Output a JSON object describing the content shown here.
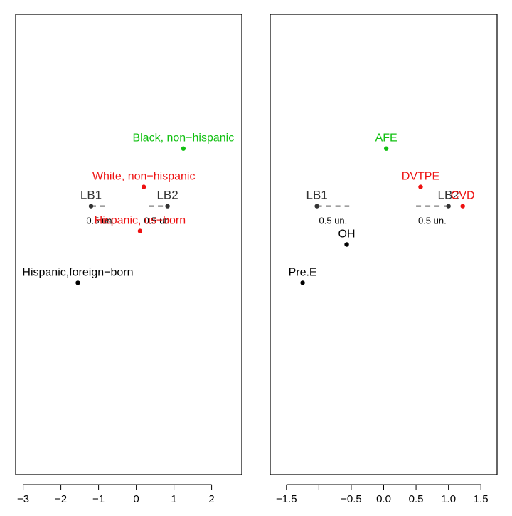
{
  "colors": {
    "green": "#11c011",
    "red": "#ee1111",
    "black": "#000000",
    "ref": "#333333"
  },
  "chart_data": [
    {
      "type": "scatter",
      "xlim": [
        -3.2,
        2.8
      ],
      "xticks": [
        -3,
        -2,
        -1,
        0,
        1,
        2
      ],
      "xtick_labels": [
        "−3",
        "−2",
        "−1",
        "0",
        "1",
        "2"
      ],
      "points": [
        {
          "name": "Black, non−hispanic",
          "x": 1.25,
          "y": 8.5,
          "color": "green"
        },
        {
          "name": "White, non−hispanic",
          "x": 0.2,
          "y": 7.5,
          "color": "red"
        },
        {
          "name": "Hispanic, us−born",
          "x": 0.1,
          "y": 6.35,
          "color": "red"
        },
        {
          "name": "Hispanic,foreign−born",
          "x": -1.55,
          "y": 5.0,
          "color": "black"
        }
      ],
      "reference_points": [
        {
          "name": "LB1",
          "x": -1.2,
          "y": 7.0
        },
        {
          "name": "LB2",
          "x": 0.83,
          "y": 7.0
        }
      ],
      "scale_bars": [
        {
          "label": "0.5 un.",
          "x0": -1.2,
          "x1": -0.7,
          "y": 7.0
        },
        {
          "label": "0.5 un.",
          "x0": 0.33,
          "x1": 0.83,
          "y": 7.0
        }
      ]
    },
    {
      "type": "scatter",
      "xlim": [
        -1.75,
        1.75
      ],
      "xticks": [
        -1.5,
        -1,
        -0.5,
        0,
        0.5,
        1,
        1.5
      ],
      "xtick_labels": [
        "−1.5",
        "",
        "−0.5",
        "0.0",
        "0.5",
        "1.0",
        "1.5"
      ],
      "points": [
        {
          "name": "AFE",
          "x": 0.04,
          "y": 8.5,
          "color": "green"
        },
        {
          "name": "DVTPE",
          "x": 0.57,
          "y": 7.5,
          "color": "red"
        },
        {
          "name": "CVD",
          "x": 1.22,
          "y": 7.0,
          "color": "red"
        },
        {
          "name": "OH",
          "x": -0.57,
          "y": 6.0,
          "color": "black"
        },
        {
          "name": "Pre.E",
          "x": -1.25,
          "y": 5.0,
          "color": "black"
        }
      ],
      "reference_points": [
        {
          "name": "LB1",
          "x": -1.03,
          "y": 7.0
        },
        {
          "name": "LB2",
          "x": 1.0,
          "y": 7.0
        }
      ],
      "scale_bars": [
        {
          "label": "0.5 un.",
          "x0": -1.03,
          "x1": -0.53,
          "y": 7.0
        },
        {
          "label": "0.5 un.",
          "x0": 0.5,
          "x1": 1.0,
          "y": 7.0
        }
      ]
    }
  ]
}
